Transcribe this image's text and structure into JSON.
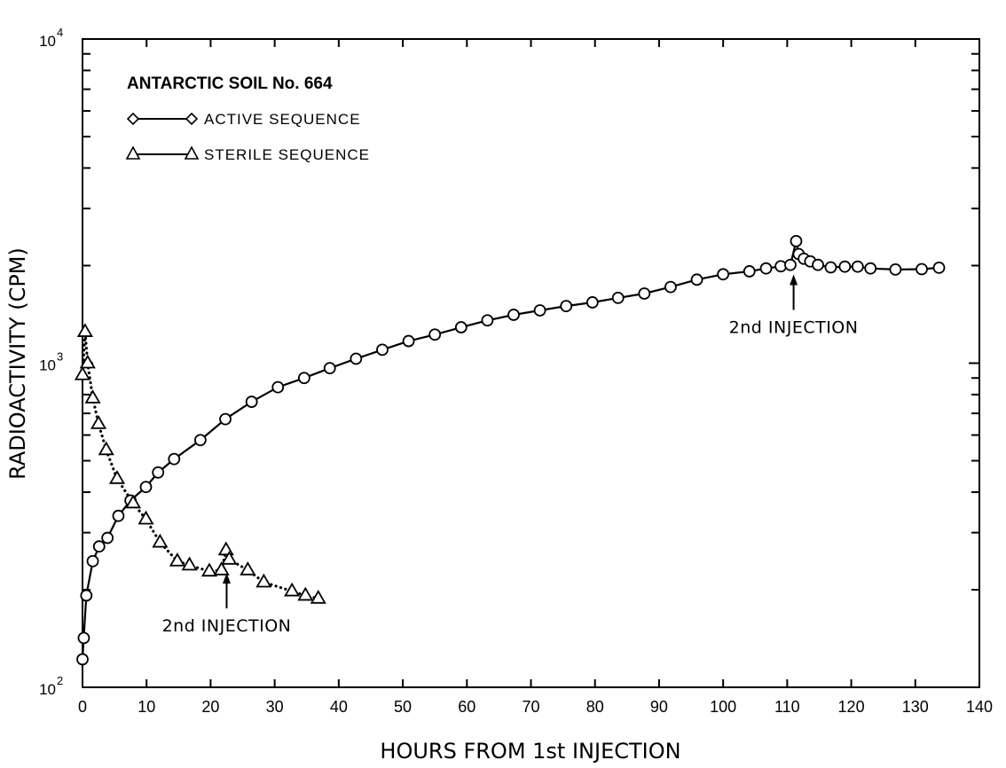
{
  "chart_data": {
    "type": "scatter",
    "title": "ANTARCTIC SOIL No. 664",
    "xlabel": "HOURS FROM 1st INJECTION",
    "ylabel": "RADIOACTIVITY (CPM)",
    "xlim": [
      0,
      140
    ],
    "ylim": [
      100,
      10000
    ],
    "yscale": "log",
    "grid": false,
    "legend_position": "top-left",
    "x_ticks": [
      "0",
      "10",
      "20",
      "30",
      "40",
      "50",
      "60",
      "70",
      "80",
      "90",
      "100",
      "110",
      "120",
      "130",
      "140"
    ],
    "y_ticks": [
      {
        "base": "10",
        "exp": "2",
        "value": 100
      },
      {
        "base": "10",
        "exp": "3",
        "value": 1000
      },
      {
        "base": "10",
        "exp": "4",
        "value": 10000
      }
    ],
    "series": [
      {
        "name": "ACTIVE SEQUENCE",
        "marker": "circle",
        "line": "solid",
        "points": [
          [
            0,
            122
          ],
          [
            0.2,
            142
          ],
          [
            0.6,
            192
          ],
          [
            1.6,
            245
          ],
          [
            2.6,
            272
          ],
          [
            3.9,
            289
          ],
          [
            5.6,
            338
          ],
          [
            7.5,
            377
          ],
          [
            9.9,
            415
          ],
          [
            11.8,
            460
          ],
          [
            14.3,
            506
          ],
          [
            18.4,
            579
          ],
          [
            22.3,
            672
          ],
          [
            26.4,
            760
          ],
          [
            30.5,
            843
          ],
          [
            34.6,
            900
          ],
          [
            38.6,
            965
          ],
          [
            42.7,
            1032
          ],
          [
            46.8,
            1100
          ],
          [
            50.9,
            1170
          ],
          [
            55.0,
            1225
          ],
          [
            59.1,
            1290
          ],
          [
            63.2,
            1355
          ],
          [
            67.3,
            1410
          ],
          [
            71.4,
            1455
          ],
          [
            75.5,
            1500
          ],
          [
            79.6,
            1540
          ],
          [
            83.6,
            1590
          ],
          [
            87.7,
            1640
          ],
          [
            91.8,
            1718
          ],
          [
            95.9,
            1810
          ],
          [
            100.0,
            1880
          ],
          [
            104.1,
            1920
          ],
          [
            106.7,
            1960
          ],
          [
            109.0,
            1990
          ],
          [
            110.5,
            2010
          ],
          [
            111.4,
            2380
          ],
          [
            111.8,
            2170
          ],
          [
            112.6,
            2100
          ],
          [
            113.6,
            2060
          ],
          [
            114.8,
            2010
          ],
          [
            116.8,
            1975
          ],
          [
            119.0,
            1985
          ],
          [
            121.0,
            1985
          ],
          [
            123.0,
            1960
          ],
          [
            126.9,
            1945
          ],
          [
            131.0,
            1950
          ],
          [
            133.7,
            1970
          ]
        ]
      },
      {
        "name": "STERILE SEQUENCE",
        "marker": "triangle",
        "line": "dotted",
        "points": [
          [
            0,
            920
          ],
          [
            0.4,
            1250
          ],
          [
            0.8,
            1000
          ],
          [
            1.6,
            780
          ],
          [
            2.5,
            650
          ],
          [
            3.7,
            540
          ],
          [
            5.4,
            440
          ],
          [
            7.9,
            370
          ],
          [
            9.9,
            330
          ],
          [
            12.1,
            280
          ],
          [
            14.8,
            245
          ],
          [
            16.7,
            238
          ],
          [
            19.8,
            228
          ],
          [
            21.7,
            230
          ],
          [
            22.4,
            265
          ],
          [
            22.9,
            248
          ],
          [
            25.8,
            230
          ],
          [
            28.3,
            211
          ],
          [
            32.7,
            198
          ],
          [
            34.8,
            192
          ],
          [
            36.8,
            188
          ]
        ]
      }
    ],
    "annotations": [
      {
        "text": "2nd INJECTION",
        "x": 22.5,
        "arrow_y": 240
      },
      {
        "text": "2nd INJECTION",
        "x": 111.0,
        "arrow_y": 2000
      }
    ]
  }
}
